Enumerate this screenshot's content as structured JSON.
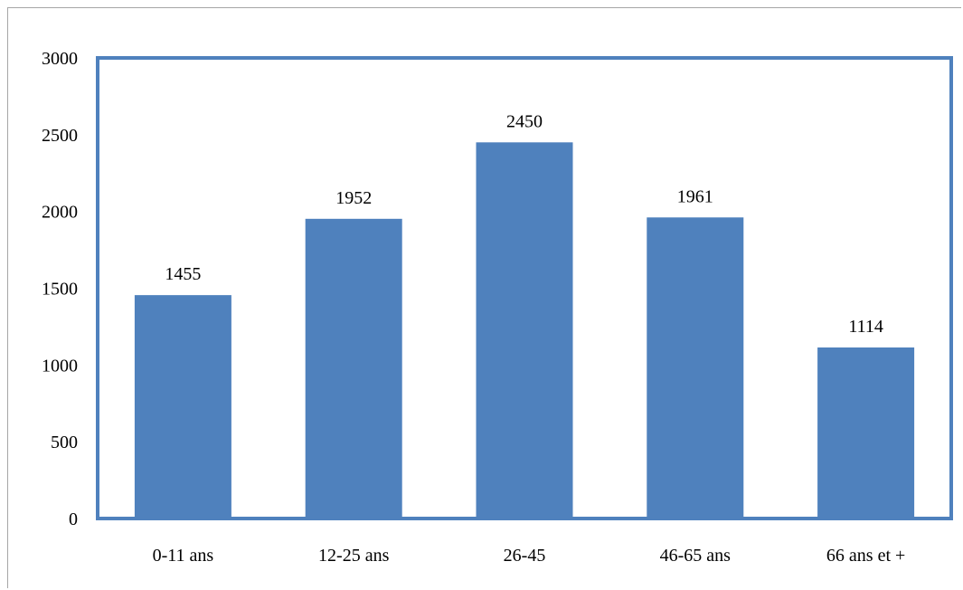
{
  "chart_data": {
    "type": "bar",
    "categories": [
      "0-11 ans",
      "12-25 ans",
      "26-45",
      "46-65 ans",
      "66 ans et +"
    ],
    "values": [
      1455,
      1952,
      2450,
      1961,
      1114
    ],
    "title": "",
    "xlabel": "",
    "ylabel": "",
    "ylim": [
      0,
      3000
    ],
    "yticks": [
      0,
      500,
      1000,
      1500,
      2000,
      2500,
      3000
    ],
    "grid": false,
    "legend": "none",
    "data_labels": true,
    "colors": {
      "bar": "#4f81bd",
      "plot_border": "#4f81bd",
      "chart_border": "#a6a6a6",
      "text": "#000000"
    }
  }
}
